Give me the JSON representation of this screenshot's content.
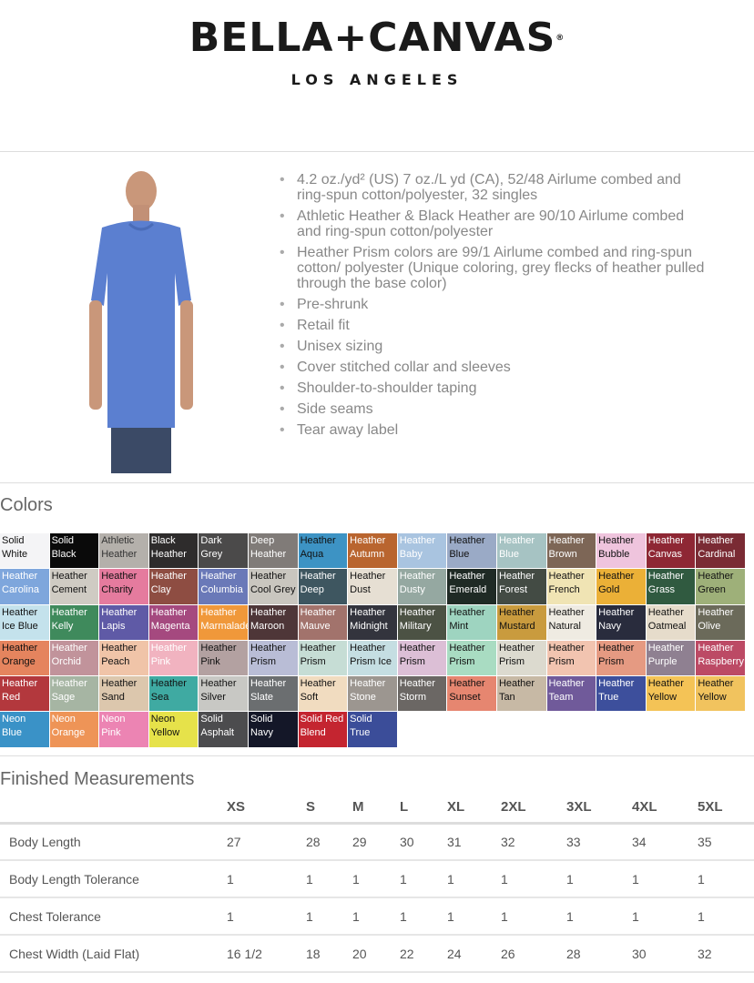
{
  "header": {
    "brand": "BELLA+CANVAS",
    "registered": "®",
    "city": "LOS ANGELES"
  },
  "features": [
    "4.2 oz./yd² (US) 7 oz./L yd (CA), 52/48 Airlume combed and ring-spun cotton/polyester, 32 singles",
    "Athletic Heather & Black Heather are 90/10 Airlume combed and ring-spun cotton/polyester",
    "Heather Prism colors are 99/1 Airlume combed and ring-spun cotton/ polyester (Unique coloring, grey flecks of heather pulled through the base color)",
    "Pre-shrunk",
    "Retail fit",
    "Unisex sizing",
    "Cover stitched collar and sleeves",
    "Shoulder-to-shoulder taping",
    "Side seams",
    "Tear away label"
  ],
  "colors_title": "Colors",
  "colors": [
    [
      "Solid\nWhite",
      "#f4f4f6",
      "#111"
    ],
    [
      "Solid\nBlack",
      "#0a0a0a",
      "#fff"
    ],
    [
      "Athletic\nHeather",
      "#b4b0ab",
      "#333"
    ],
    [
      "Black\nHeather",
      "#2e2c2c",
      "#fff"
    ],
    [
      "Dark\nGrey",
      "#4b4a4a",
      "#fff"
    ],
    [
      "Deep\nHeather",
      "#807b78",
      "#fff"
    ],
    [
      "Heather\nAqua",
      "#3d93c4",
      "#111"
    ],
    [
      "Heather\nAutumn",
      "#b9652f",
      "#fff"
    ],
    [
      "Heather\nBaby",
      "#a9c4e0",
      "#fff"
    ],
    [
      "Heather\nBlue",
      "#9aaac6",
      "#111"
    ],
    [
      "Heather\nBlue",
      "#a6c3c3",
      "#fff"
    ],
    [
      "Heather\nBrown",
      "#7d6656",
      "#fff"
    ],
    [
      "Heather\nBubble",
      "#efc4dd",
      "#111"
    ],
    [
      "Heather\nCanvas",
      "#8e2734",
      "#fff"
    ],
    [
      "Heather\nCardinal",
      "#7a2b34",
      "#fff"
    ],
    [
      "Heather\nCarolina",
      "#7ea6dc",
      "#fff"
    ],
    [
      "Heather\nCement",
      "#cfcbc3",
      "#111"
    ],
    [
      "Heather\nCharity",
      "#e57b9e",
      "#111"
    ],
    [
      "Heather\nClay",
      "#8e4d42",
      "#fff"
    ],
    [
      "Heather\nColumbia",
      "#6a79b8",
      "#fff"
    ],
    [
      "Heather\nCool Grey",
      "#c9c6bf",
      "#111"
    ],
    [
      "Heather\nDeep",
      "#3e5660",
      "#fff"
    ],
    [
      "Heather\nDust",
      "#e6dfd3",
      "#111"
    ],
    [
      "Heather\nDusty",
      "#95a8a1",
      "#fff"
    ],
    [
      "Heather\nEmerald",
      "#1f2a25",
      "#fff"
    ],
    [
      "Heather\nForest",
      "#434b44",
      "#fff"
    ],
    [
      "Heather\nFrench",
      "#f0e4b4",
      "#111"
    ],
    [
      "Heather\nGold",
      "#ebb037",
      "#111"
    ],
    [
      "Heather\nGrass",
      "#305a40",
      "#fff"
    ],
    [
      "Heather\nGreen",
      "#9eb079",
      "#111"
    ],
    [
      "Heather\nIce Blue",
      "#c4e2ec",
      "#111"
    ],
    [
      "Heather\nKelly",
      "#3f8a5c",
      "#fff"
    ],
    [
      "Heather\nLapis",
      "#5f5aa6",
      "#fff"
    ],
    [
      "Heather\nMagenta",
      "#a5497f",
      "#fff"
    ],
    [
      "Heather\nMarmalade",
      "#f0983a",
      "#fff"
    ],
    [
      "Heather\nMaroon",
      "#4e3638",
      "#fff"
    ],
    [
      "Heather\nMauve",
      "#a2736c",
      "#fff"
    ],
    [
      "Heather\nMidnight",
      "#33343d",
      "#fff"
    ],
    [
      "Heather\nMilitary",
      "#4c5244",
      "#fff"
    ],
    [
      "Heather\nMint",
      "#9ed4c0",
      "#111"
    ],
    [
      "Heather\nMustard",
      "#c99b3e",
      "#111"
    ],
    [
      "Heather\nNatural",
      "#efebe2",
      "#111"
    ],
    [
      "Heather\nNavy",
      "#292c3d",
      "#fff"
    ],
    [
      "Heather\nOatmeal",
      "#e6dccb",
      "#111"
    ],
    [
      "Heather\nOlive",
      "#6b6a5a",
      "#fff"
    ],
    [
      "Heather\nOrange",
      "#e5845e",
      "#111"
    ],
    [
      "Heather\nOrchid",
      "#c1939b",
      "#fff"
    ],
    [
      "Heather\nPeach",
      "#f0c4a8",
      "#111"
    ],
    [
      "Heather\nPink",
      "#f1b3c0",
      "#fff"
    ],
    [
      "Heather\nPink",
      "#b3a1a1",
      "#111"
    ],
    [
      "Heather\nPrism",
      "#b9bdd6",
      "#111"
    ],
    [
      "Heather\nPrism",
      "#c6ddd5",
      "#111"
    ],
    [
      "Heather\nPrism Ice",
      "#c5dee2",
      "#111"
    ],
    [
      "Heather\nPrism",
      "#dcbfd6",
      "#111"
    ],
    [
      "Heather\nPrism",
      "#a9dcc2",
      "#111"
    ],
    [
      "Heather\nPrism",
      "#dcdacf",
      "#111"
    ],
    [
      "Heather\nPrism",
      "#f2c4b0",
      "#111"
    ],
    [
      "Heather\nPrism",
      "#e59a82",
      "#111"
    ],
    [
      "Heather\nPurple",
      "#8f8091",
      "#fff"
    ],
    [
      "Heather\nRaspberry",
      "#bc4a65",
      "#fff"
    ],
    [
      "Heather\nRed",
      "#b3383d",
      "#fff"
    ],
    [
      "Heather\nSage",
      "#a6b5a3",
      "#fff"
    ],
    [
      "Heather\nSand",
      "#dcc7ad",
      "#111"
    ],
    [
      "Heather\nSea",
      "#3faaa2",
      "#111"
    ],
    [
      "Heather\nSilver",
      "#c8c8c4",
      "#111"
    ],
    [
      "Heather\nSlate",
      "#6b6e70",
      "#fff"
    ],
    [
      "Heather\nSoft",
      "#f1dcc0",
      "#111"
    ],
    [
      "Heather\nStone",
      "#9c9690",
      "#fff"
    ],
    [
      "Heather\nStorm",
      "#6b6764",
      "#fff"
    ],
    [
      "Heather\nSunset",
      "#e68670",
      "#111"
    ],
    [
      "Heather\nTan",
      "#c7b9a5",
      "#111"
    ],
    [
      "Heather\nTeam",
      "#705a9a",
      "#fff"
    ],
    [
      "Heather\nTrue",
      "#3d4f9c",
      "#fff"
    ],
    [
      "Heather\nYellow",
      "#f4c356",
      "#111"
    ],
    [
      "Heather\nYellow",
      "#f1c35e",
      "#111"
    ],
    [
      "Neon\nBlue",
      "#3a92c7",
      "#fff"
    ],
    [
      "Neon\nOrange",
      "#ee9457",
      "#fff"
    ],
    [
      "Neon\nPink",
      "#ec84b3",
      "#fff"
    ],
    [
      "Neon\nYellow",
      "#e6e24a",
      "#111"
    ],
    [
      "Solid\nAsphalt",
      "#4c4c4e",
      "#fff"
    ],
    [
      "Solid\nNavy",
      "#141728",
      "#fff"
    ],
    [
      "Solid Red\nBlend",
      "#c42530",
      "#fff"
    ],
    [
      "Solid\nTrue",
      "#3b4d99",
      "#fff"
    ]
  ],
  "measurements": {
    "title": "Finished Measurements",
    "sizes": [
      "XS",
      "S",
      "M",
      "L",
      "XL",
      "2XL",
      "3XL",
      "4XL",
      "5XL"
    ],
    "rows": [
      {
        "label": "Body Length",
        "values": [
          "27",
          "28",
          "29",
          "30",
          "31",
          "32",
          "33",
          "34",
          "35"
        ]
      },
      {
        "label": "Body Length Tolerance",
        "values": [
          "1",
          "1",
          "1",
          "1",
          "1",
          "1",
          "1",
          "1",
          "1"
        ]
      },
      {
        "label": "Chest Tolerance",
        "values": [
          "1",
          "1",
          "1",
          "1",
          "1",
          "1",
          "1",
          "1",
          "1"
        ]
      },
      {
        "label": "Chest Width (Laid Flat)",
        "values": [
          "16 1/2",
          "18",
          "20",
          "22",
          "24",
          "26",
          "28",
          "30",
          "32"
        ]
      }
    ]
  }
}
